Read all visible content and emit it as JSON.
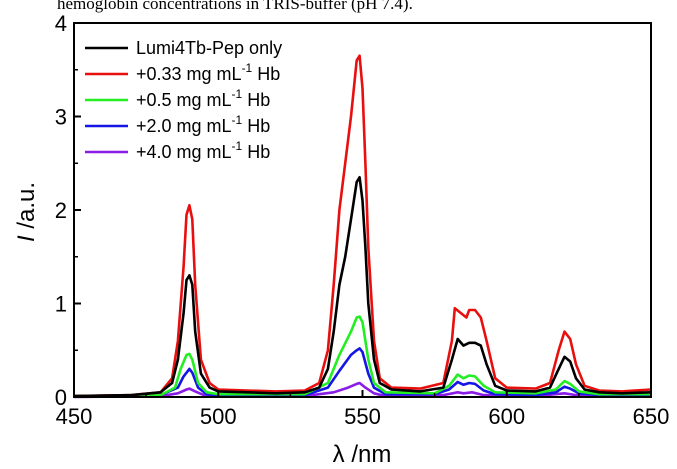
{
  "caption": "hemoglobin concentrations in TRIS-buffer (pH 7.4).",
  "chart_data": {
    "type": "line",
    "title": "",
    "xlabel": "λ /nm",
    "ylabel_italic": "I",
    "ylabel_rest": " /a.u.",
    "xlim": [
      450,
      650
    ],
    "ylim": [
      0,
      4
    ],
    "xticks": [
      450,
      500,
      550,
      600,
      650
    ],
    "yticks": [
      0,
      1,
      2,
      3,
      4
    ],
    "grid": false,
    "legend_position": "top-left",
    "series": [
      {
        "name": "Lumi4Tb-Pep only",
        "legend_parts": [
          "Lumi4Tb-Pep only"
        ],
        "color": "#000000",
        "points": [
          [
            450,
            0.01
          ],
          [
            470,
            0.02
          ],
          [
            480,
            0.05
          ],
          [
            484,
            0.15
          ],
          [
            486,
            0.4
          ],
          [
            488,
            0.9
          ],
          [
            489,
            1.25
          ],
          [
            490,
            1.3
          ],
          [
            491,
            1.2
          ],
          [
            492,
            0.7
          ],
          [
            494,
            0.25
          ],
          [
            497,
            0.1
          ],
          [
            500,
            0.06
          ],
          [
            510,
            0.05
          ],
          [
            520,
            0.04
          ],
          [
            530,
            0.05
          ],
          [
            535,
            0.1
          ],
          [
            538,
            0.3
          ],
          [
            540,
            0.7
          ],
          [
            542,
            1.2
          ],
          [
            544,
            1.5
          ],
          [
            546,
            1.9
          ],
          [
            548,
            2.3
          ],
          [
            549,
            2.35
          ],
          [
            550,
            2.1
          ],
          [
            551,
            1.6
          ],
          [
            552,
            1.0
          ],
          [
            554,
            0.4
          ],
          [
            556,
            0.15
          ],
          [
            560,
            0.08
          ],
          [
            570,
            0.06
          ],
          [
            578,
            0.1
          ],
          [
            581,
            0.4
          ],
          [
            583,
            0.62
          ],
          [
            585,
            0.55
          ],
          [
            587,
            0.58
          ],
          [
            589,
            0.58
          ],
          [
            591,
            0.55
          ],
          [
            593,
            0.35
          ],
          [
            596,
            0.12
          ],
          [
            600,
            0.07
          ],
          [
            610,
            0.06
          ],
          [
            615,
            0.1
          ],
          [
            618,
            0.3
          ],
          [
            620,
            0.43
          ],
          [
            622,
            0.38
          ],
          [
            624,
            0.2
          ],
          [
            627,
            0.08
          ],
          [
            632,
            0.05
          ],
          [
            640,
            0.04
          ],
          [
            650,
            0.05
          ]
        ]
      },
      {
        "name": "+0.33 mg mL⁻¹ Hb",
        "legend_parts": [
          "+0.33 mg mL",
          "-1",
          " Hb"
        ],
        "color": "#e8100f",
        "points": [
          [
            450,
            0.01
          ],
          [
            470,
            0.02
          ],
          [
            480,
            0.05
          ],
          [
            484,
            0.2
          ],
          [
            486,
            0.6
          ],
          [
            488,
            1.4
          ],
          [
            489,
            1.95
          ],
          [
            490,
            2.05
          ],
          [
            491,
            1.9
          ],
          [
            492,
            1.2
          ],
          [
            494,
            0.4
          ],
          [
            497,
            0.15
          ],
          [
            500,
            0.08
          ],
          [
            510,
            0.07
          ],
          [
            520,
            0.06
          ],
          [
            530,
            0.07
          ],
          [
            535,
            0.15
          ],
          [
            538,
            0.5
          ],
          [
            540,
            1.2
          ],
          [
            542,
            2.0
          ],
          [
            544,
            2.5
          ],
          [
            546,
            3.0
          ],
          [
            548,
            3.6
          ],
          [
            549,
            3.65
          ],
          [
            550,
            3.3
          ],
          [
            551,
            2.5
          ],
          [
            552,
            1.6
          ],
          [
            554,
            0.6
          ],
          [
            556,
            0.2
          ],
          [
            560,
            0.1
          ],
          [
            570,
            0.09
          ],
          [
            578,
            0.15
          ],
          [
            581,
            0.6
          ],
          [
            582,
            0.95
          ],
          [
            584,
            0.9
          ],
          [
            586,
            0.85
          ],
          [
            587,
            0.93
          ],
          [
            589,
            0.93
          ],
          [
            591,
            0.85
          ],
          [
            593,
            0.6
          ],
          [
            596,
            0.2
          ],
          [
            600,
            0.1
          ],
          [
            610,
            0.09
          ],
          [
            615,
            0.15
          ],
          [
            618,
            0.5
          ],
          [
            620,
            0.7
          ],
          [
            622,
            0.62
          ],
          [
            624,
            0.35
          ],
          [
            627,
            0.12
          ],
          [
            632,
            0.07
          ],
          [
            640,
            0.06
          ],
          [
            650,
            0.08
          ]
        ]
      },
      {
        "name": "+0.5 mg mL⁻¹ Hb",
        "legend_parts": [
          "+0.5 mg mL",
          "-1",
          " Hb"
        ],
        "color": "#22ee22",
        "points": [
          [
            450,
            0.01
          ],
          [
            480,
            0.02
          ],
          [
            485,
            0.1
          ],
          [
            487,
            0.3
          ],
          [
            489,
            0.45
          ],
          [
            490,
            0.46
          ],
          [
            491,
            0.4
          ],
          [
            493,
            0.15
          ],
          [
            496,
            0.05
          ],
          [
            500,
            0.03
          ],
          [
            530,
            0.03
          ],
          [
            538,
            0.15
          ],
          [
            542,
            0.45
          ],
          [
            546,
            0.7
          ],
          [
            548,
            0.85
          ],
          [
            549,
            0.86
          ],
          [
            550,
            0.8
          ],
          [
            552,
            0.4
          ],
          [
            554,
            0.15
          ],
          [
            558,
            0.05
          ],
          [
            575,
            0.04
          ],
          [
            580,
            0.12
          ],
          [
            583,
            0.24
          ],
          [
            585,
            0.2
          ],
          [
            587,
            0.23
          ],
          [
            589,
            0.22
          ],
          [
            592,
            0.12
          ],
          [
            596,
            0.05
          ],
          [
            610,
            0.04
          ],
          [
            617,
            0.08
          ],
          [
            620,
            0.17
          ],
          [
            622,
            0.14
          ],
          [
            625,
            0.06
          ],
          [
            632,
            0.03
          ],
          [
            650,
            0.03
          ]
        ]
      },
      {
        "name": "+2.0 mg mL⁻¹ Hb",
        "legend_parts": [
          "+2.0 mg mL",
          "-1",
          " Hb"
        ],
        "color": "#1515e6",
        "points": [
          [
            450,
            0.01
          ],
          [
            480,
            0.02
          ],
          [
            486,
            0.1
          ],
          [
            488,
            0.22
          ],
          [
            490,
            0.3
          ],
          [
            491,
            0.26
          ],
          [
            493,
            0.1
          ],
          [
            496,
            0.03
          ],
          [
            500,
            0.02
          ],
          [
            530,
            0.02
          ],
          [
            538,
            0.1
          ],
          [
            542,
            0.28
          ],
          [
            546,
            0.45
          ],
          [
            548,
            0.5
          ],
          [
            549,
            0.52
          ],
          [
            550,
            0.48
          ],
          [
            552,
            0.25
          ],
          [
            554,
            0.1
          ],
          [
            558,
            0.03
          ],
          [
            575,
            0.03
          ],
          [
            580,
            0.08
          ],
          [
            583,
            0.16
          ],
          [
            585,
            0.13
          ],
          [
            587,
            0.15
          ],
          [
            589,
            0.14
          ],
          [
            592,
            0.07
          ],
          [
            596,
            0.03
          ],
          [
            610,
            0.02
          ],
          [
            617,
            0.05
          ],
          [
            620,
            0.11
          ],
          [
            622,
            0.09
          ],
          [
            625,
            0.04
          ],
          [
            632,
            0.02
          ],
          [
            650,
            0.02
          ]
        ]
      },
      {
        "name": "+4.0 mg mL⁻¹ Hb",
        "legend_parts": [
          "+4.0 mg mL",
          "-1",
          " Hb"
        ],
        "color": "#8a1ce6",
        "points": [
          [
            450,
            0.0
          ],
          [
            480,
            0.01
          ],
          [
            486,
            0.04
          ],
          [
            489,
            0.08
          ],
          [
            490,
            0.09
          ],
          [
            492,
            0.06
          ],
          [
            495,
            0.02
          ],
          [
            500,
            0.01
          ],
          [
            530,
            0.01
          ],
          [
            540,
            0.05
          ],
          [
            545,
            0.1
          ],
          [
            548,
            0.14
          ],
          [
            549,
            0.15
          ],
          [
            551,
            0.1
          ],
          [
            554,
            0.04
          ],
          [
            558,
            0.01
          ],
          [
            578,
            0.02
          ],
          [
            583,
            0.05
          ],
          [
            585,
            0.04
          ],
          [
            588,
            0.05
          ],
          [
            592,
            0.02
          ],
          [
            610,
            0.01
          ],
          [
            620,
            0.04
          ],
          [
            624,
            0.02
          ],
          [
            632,
            0.01
          ],
          [
            650,
            0.01
          ]
        ]
      }
    ]
  }
}
